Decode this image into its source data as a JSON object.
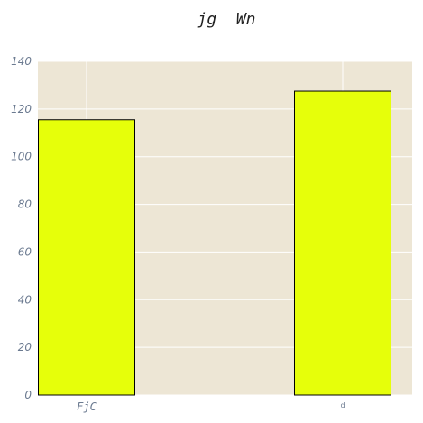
{
  "chart_data": {
    "type": "bar",
    "title": "jg  Wn",
    "xlabel": "",
    "ylabel": "",
    "categories": [
      "FjC",
      "d"
    ],
    "values": [
      115.5,
      127.5
    ],
    "ylim": [
      0,
      140
    ],
    "yticks": [
      "0",
      "20",
      "40",
      "60",
      "80",
      "100",
      "120",
      "140"
    ],
    "grid": true,
    "legend": "none"
  },
  "colors": {
    "plot_background": "#ede6d5",
    "bar_fill": "#e6ff0a",
    "bar_edge": "#000000",
    "grid": "#ffffff"
  }
}
